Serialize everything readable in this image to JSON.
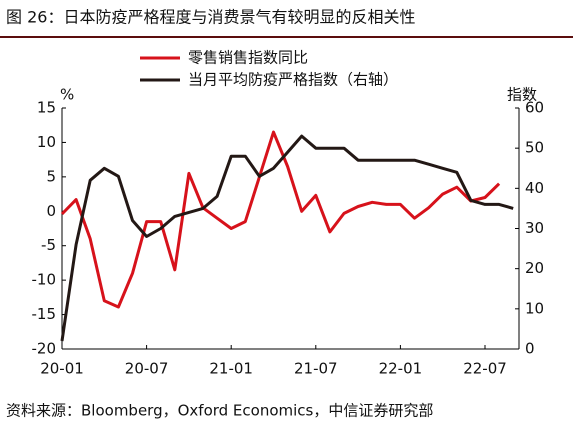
{
  "chart_data": {
    "type": "line",
    "title": "图 26：日本防疫严格程度与消费景气有较明显的反相关性",
    "source": "资料来源：Bloomberg，Oxford Economics，中信证券研究部",
    "ylabel": "%",
    "y2label": "指数",
    "categories": [
      "20-01",
      null,
      null,
      null,
      null,
      null,
      "20-07",
      null,
      null,
      null,
      null,
      null,
      "21-01",
      null,
      null,
      null,
      null,
      null,
      "21-07",
      null,
      null,
      null,
      null,
      null,
      "22-01",
      null,
      null,
      null,
      null,
      null,
      "22-07",
      null,
      null
    ],
    "series": [
      {
        "name": "零售销售指数同比",
        "color": "#d7121b",
        "values": [
          -0.4,
          1.7,
          -4,
          -13,
          -13.9,
          -9,
          -1.5,
          -1.5,
          -8.5,
          5.5,
          0.5,
          -1,
          -2.5,
          -1.5,
          5,
          11.5,
          6.5,
          0,
          2.3,
          -3,
          -0.3,
          0.7,
          1.3,
          1,
          1,
          -1,
          0.5,
          2.5,
          3.5,
          1.5,
          2,
          4,
          null
        ]
      },
      {
        "name": "当月平均防疫严格指数（右轴）",
        "color": "#231815",
        "axis": "y2",
        "values": [
          2,
          26,
          42,
          45,
          43,
          32,
          28,
          30,
          33,
          34,
          35,
          38,
          48,
          48,
          43,
          45,
          49,
          53,
          50,
          50,
          50,
          47,
          47,
          47,
          47,
          47,
          46,
          45,
          44,
          37,
          36,
          36,
          35
        ]
      }
    ],
    "ylim": [
      -20,
      15
    ],
    "yticks": [
      -20,
      -15,
      -10,
      -5,
      0,
      5,
      10,
      15
    ],
    "y2lim": [
      0,
      60
    ],
    "y2ticks": [
      0,
      10,
      20,
      30,
      40,
      50,
      60
    ]
  }
}
